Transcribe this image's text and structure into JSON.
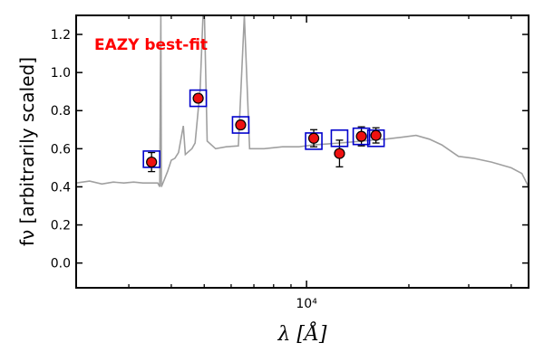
{
  "chart_data": {
    "type": "scatter",
    "annotation": "EAZY best-fit",
    "annotation_color": "#ff0000",
    "xlabel": "λ [Å]",
    "ylabel": "fν [arbitrarily scaled]",
    "xscale": "log",
    "xlim": [
      2100,
      45000
    ],
    "ylim": [
      -0.13,
      1.3
    ],
    "yticks": [
      0.0,
      0.2,
      0.4,
      0.6,
      0.8,
      1.0,
      1.2
    ],
    "ytick_labels": [
      "0.0",
      "0.2",
      "0.4",
      "0.6",
      "0.8",
      "1.0",
      "1.2"
    ],
    "xticks_major": [
      10000
    ],
    "xtick_labels": [
      "10⁴"
    ],
    "xticks_minor": [
      3000,
      4000,
      5000,
      6000,
      7000,
      8000,
      9000,
      20000,
      30000,
      40000
    ],
    "grid": false,
    "series": [
      {
        "role": "observed",
        "marker": "circle",
        "color": "#ee1111",
        "x": [
          3500,
          4800,
          6400,
          10500,
          12500,
          14500,
          16000
        ],
        "y": [
          0.53,
          0.865,
          0.725,
          0.655,
          0.575,
          0.665,
          0.67
        ],
        "yerr": [
          0.05,
          0.02,
          0.02,
          0.045,
          0.07,
          0.05,
          0.04
        ]
      },
      {
        "role": "model_photometry",
        "marker": "open-square",
        "color": "#0000cc",
        "x": [
          3500,
          4800,
          6400,
          10500,
          12500,
          14500,
          16000
        ],
        "y": [
          0.545,
          0.865,
          0.725,
          0.64,
          0.655,
          0.665,
          0.655
        ]
      },
      {
        "role": "template",
        "marker": "line",
        "color": "#a0a0a0",
        "x": [
          2100,
          2300,
          2500,
          2700,
          2900,
          3100,
          3300,
          3500,
          3650,
          3700,
          3727,
          3740,
          3800,
          3900,
          4000,
          4100,
          4200,
          4340,
          4400,
          4600,
          4700,
          4861,
          4959,
          5007,
          5100,
          5400,
          5800,
          6300,
          6563,
          6800,
          7500,
          8500,
          9500,
          10500,
          11500,
          12500,
          13500,
          14500,
          15500,
          16000,
          17000,
          19000,
          21000,
          23000,
          25000,
          28000,
          31000,
          35000,
          40000,
          43000,
          45000
        ],
        "y": [
          0.42,
          0.43,
          0.415,
          0.425,
          0.42,
          0.425,
          0.42,
          0.42,
          0.42,
          0.4,
          1.3,
          0.4,
          0.43,
          0.48,
          0.54,
          0.55,
          0.58,
          0.72,
          0.57,
          0.6,
          0.63,
          0.91,
          1.3,
          1.3,
          0.64,
          0.6,
          0.61,
          0.615,
          1.3,
          0.6,
          0.6,
          0.61,
          0.61,
          0.62,
          0.625,
          0.63,
          0.635,
          0.64,
          0.645,
          0.65,
          0.65,
          0.66,
          0.67,
          0.65,
          0.62,
          0.56,
          0.55,
          0.53,
          0.5,
          0.47,
          0.4
        ]
      }
    ]
  }
}
